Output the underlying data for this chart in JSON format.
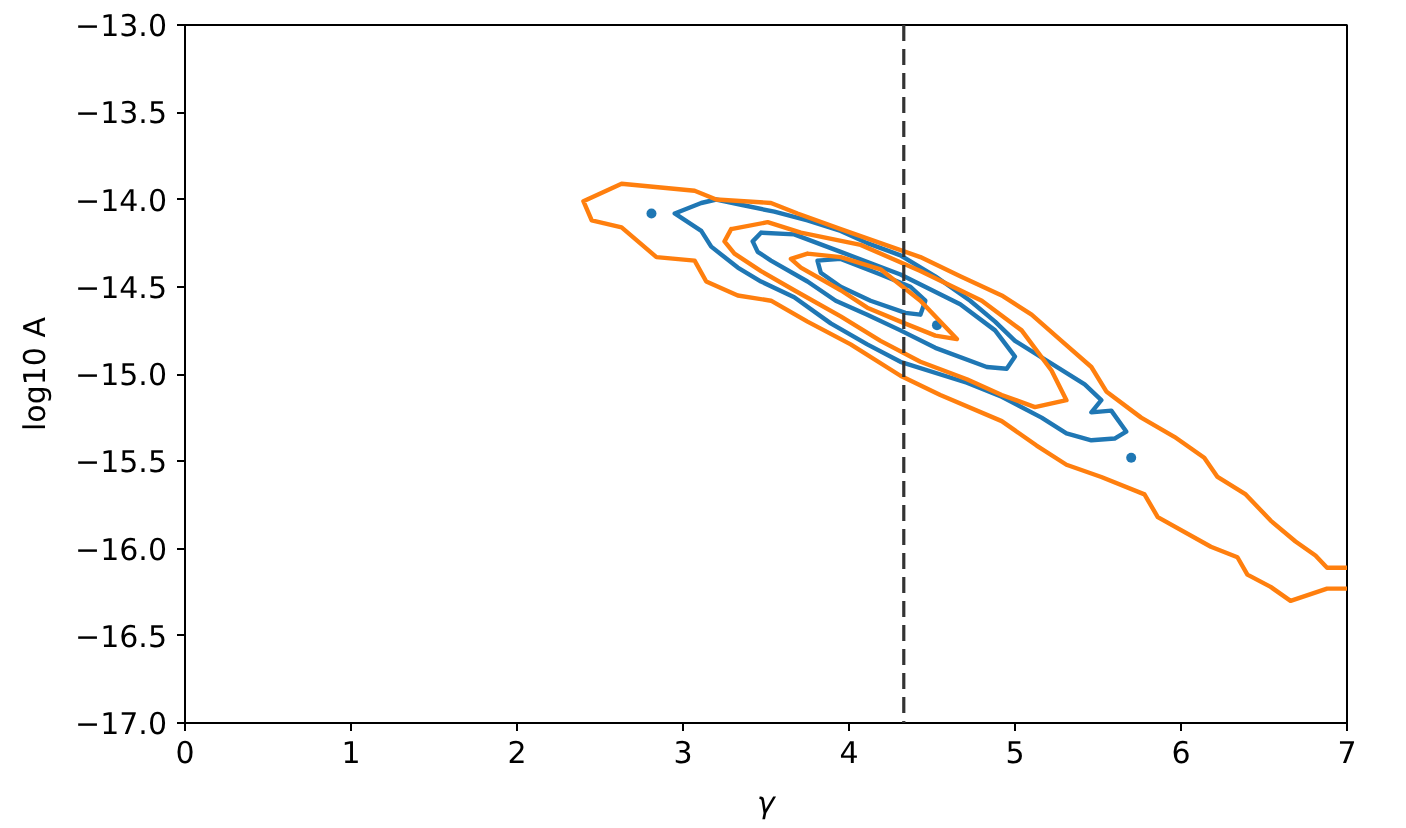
{
  "chart_data": {
    "type": "line",
    "xlabel": "γ",
    "ylabel": "log10 A",
    "xlim": [
      0,
      7
    ],
    "ylim": [
      -17,
      -13
    ],
    "xticks": [
      0,
      1,
      2,
      3,
      4,
      5,
      6,
      7
    ],
    "yticks": [
      {
        "value": -17.0,
        "label": "−17.0"
      },
      {
        "value": -16.5,
        "label": "−16.5"
      },
      {
        "value": -16.0,
        "label": "−16.0"
      },
      {
        "value": -15.5,
        "label": "−15.5"
      },
      {
        "value": -15.0,
        "label": "−15.0"
      },
      {
        "value": -14.5,
        "label": "−14.5"
      },
      {
        "value": -14.0,
        "label": "−14.0"
      },
      {
        "value": -13.5,
        "label": "−13.5"
      },
      {
        "value": -13.0,
        "label": "−13.0"
      }
    ],
    "grid": false,
    "line_style": "solid",
    "ref_lines": [
      {
        "axis": "x",
        "value": 4.33,
        "color": "#333333",
        "line_style": "dashed"
      }
    ],
    "series": [
      {
        "color": "#1f77b4",
        "x": [
          2.95,
          3.11,
          3.2,
          3.35,
          3.55,
          3.75,
          3.95,
          4.11,
          4.31,
          4.52,
          4.73,
          4.88,
          5.0,
          5.22,
          5.42,
          5.52,
          5.46,
          5.58,
          5.67,
          5.6,
          5.46,
          5.31,
          5.16,
          4.92,
          4.71,
          4.31,
          4.11,
          3.89,
          3.67,
          3.47,
          3.33,
          3.17,
          3.11,
          2.95,
          3.11
        ],
        "values": [
          -14.08,
          -14.02,
          -14.0,
          -14.03,
          -14.07,
          -14.12,
          -14.18,
          -14.25,
          -14.32,
          -14.44,
          -14.58,
          -14.7,
          -14.81,
          -14.94,
          -15.06,
          -15.15,
          -15.22,
          -15.21,
          -15.33,
          -15.37,
          -15.38,
          -15.34,
          -15.25,
          -15.13,
          -15.05,
          -14.93,
          -14.83,
          -14.71,
          -14.56,
          -14.47,
          -14.39,
          -14.27,
          -14.18,
          -14.08,
          -14.02
        ]
      },
      {
        "color": "#1f77b4",
        "x": [
          3.42,
          3.47,
          3.67,
          3.95,
          4.31,
          4.67,
          4.88,
          5.0,
          4.95,
          4.83,
          4.52,
          4.31,
          4.11,
          3.92,
          3.75,
          3.53,
          3.45,
          3.42,
          3.47
        ],
        "values": [
          -14.24,
          -14.19,
          -14.2,
          -14.3,
          -14.43,
          -14.6,
          -14.75,
          -14.9,
          -14.97,
          -14.96,
          -14.85,
          -14.75,
          -14.66,
          -14.58,
          -14.47,
          -14.35,
          -14.3,
          -14.24,
          -14.19
        ]
      },
      {
        "color": "#1f77b4",
        "x": [
          3.81,
          3.95,
          4.19,
          4.37,
          4.46,
          4.43,
          4.34,
          4.13,
          3.95,
          3.83,
          3.81,
          3.95
        ],
        "values": [
          -14.35,
          -14.34,
          -14.43,
          -14.5,
          -14.58,
          -14.66,
          -14.65,
          -14.58,
          -14.5,
          -14.42,
          -14.35,
          -14.34
        ]
      },
      {
        "type": "scatter",
        "color": "#1f77b4",
        "x": [
          2.81,
          4.53,
          5.7
        ],
        "values": [
          -14.08,
          -14.72,
          -15.48
        ]
      },
      {
        "color": "#ff7f0e",
        "x": [
          7.0,
          6.88,
          6.81,
          6.69,
          6.54,
          6.39,
          6.22,
          6.14,
          5.96,
          5.76,
          5.55,
          5.46,
          5.28,
          5.1,
          4.92,
          4.67,
          4.43,
          4.19,
          3.95,
          3.69,
          3.53,
          3.2,
          3.07,
          2.63,
          2.4,
          2.45,
          2.63,
          2.84,
          3.07,
          3.14,
          3.33,
          3.53,
          3.75,
          4.01,
          4.31,
          4.55,
          4.92,
          5.13,
          5.31,
          5.52,
          5.78,
          5.86,
          6.18,
          6.34,
          6.4,
          6.54,
          6.66,
          6.88,
          7.0
        ],
        "values": [
          -16.11,
          -16.11,
          -16.04,
          -15.96,
          -15.84,
          -15.69,
          -15.59,
          -15.48,
          -15.36,
          -15.25,
          -15.1,
          -14.96,
          -14.81,
          -14.66,
          -14.55,
          -14.44,
          -14.33,
          -14.25,
          -14.17,
          -14.08,
          -14.02,
          -14.0,
          -13.95,
          -13.91,
          -14.01,
          -14.12,
          -14.16,
          -14.33,
          -14.35,
          -14.47,
          -14.55,
          -14.58,
          -14.7,
          -14.83,
          -15.01,
          -15.12,
          -15.27,
          -15.41,
          -15.52,
          -15.59,
          -15.69,
          -15.82,
          -15.99,
          -16.05,
          -16.15,
          -16.22,
          -16.3,
          -16.23,
          -16.23
        ]
      },
      {
        "color": "#ff7f0e",
        "x": [
          3.25,
          3.29,
          3.51,
          3.71,
          4.07,
          4.43,
          4.8,
          5.04,
          5.22,
          5.31,
          5.12,
          4.92,
          4.71,
          4.43,
          4.19,
          3.95,
          3.67,
          3.47,
          3.31,
          3.25,
          3.29
        ],
        "values": [
          -14.24,
          -14.17,
          -14.13,
          -14.19,
          -14.26,
          -14.41,
          -14.58,
          -14.75,
          -14.98,
          -15.15,
          -15.19,
          -15.12,
          -15.03,
          -14.93,
          -14.81,
          -14.67,
          -14.52,
          -14.41,
          -14.31,
          -14.24,
          -14.17
        ]
      },
      {
        "color": "#ff7f0e",
        "x": [
          3.65,
          3.75,
          3.95,
          4.19,
          4.43,
          4.65,
          4.52,
          4.31,
          4.11,
          3.95,
          3.71,
          3.65,
          3.75
        ],
        "values": [
          -14.34,
          -14.31,
          -14.33,
          -14.4,
          -14.58,
          -14.8,
          -14.78,
          -14.7,
          -14.62,
          -14.52,
          -14.39,
          -14.34,
          -14.31
        ]
      }
    ]
  }
}
